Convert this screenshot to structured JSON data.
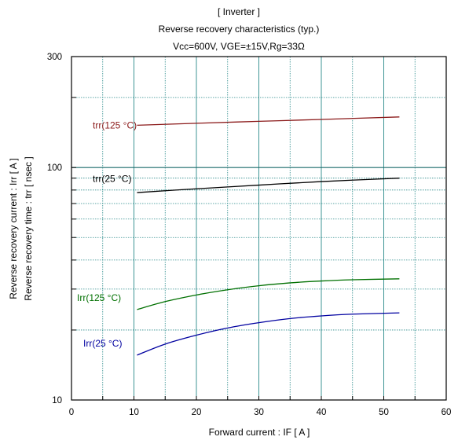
{
  "chart_data": {
    "type": "line",
    "title_lines": [
      "[ Inverter ]",
      "Reverse recovery characteristics  (typ.)",
      "Vcc=600V, VGE=±15V,Rg=33Ω"
    ],
    "xlabel": "Forward current  :  IF  [ A ]",
    "ylabel_lines": [
      "Reverse recovery current  :  Irr  [ A ]",
      "Reverse recovery time  :  trr  [ nsec ]"
    ],
    "xlim": [
      0,
      60
    ],
    "ylim": [
      10,
      300
    ],
    "yscale": "log",
    "x_ticks": [
      "0",
      "10",
      "20",
      "30",
      "40",
      "50",
      "60"
    ],
    "y_ticks": [
      "10",
      "100",
      "300"
    ],
    "grid": true,
    "series": [
      {
        "name": "trr(125 °C)",
        "color": "#8b1a1a",
        "x": [
          10.5,
          20,
          30,
          40,
          52.5
        ],
        "y": [
          152,
          155,
          158,
          161,
          165
        ]
      },
      {
        "name": "trr(25 °C)",
        "color": "#000000",
        "x": [
          10.5,
          20,
          30,
          40,
          52.5
        ],
        "y": [
          78,
          81,
          84,
          87,
          90
        ]
      },
      {
        "name": "Irr(125 °C)",
        "color": "#007000",
        "x": [
          10.5,
          15,
          20,
          25,
          30,
          35,
          40,
          45,
          52.5
        ],
        "y": [
          24.5,
          26.5,
          28.3,
          29.8,
          31.0,
          31.9,
          32.5,
          32.9,
          33.2
        ]
      },
      {
        "name": "Irr(25 °C)",
        "color": "#0000a0",
        "x": [
          10.5,
          15,
          20,
          25,
          30,
          35,
          40,
          45,
          52.5
        ],
        "y": [
          15.6,
          17.4,
          19.0,
          20.4,
          21.5,
          22.4,
          23.0,
          23.4,
          23.7
        ]
      }
    ]
  }
}
